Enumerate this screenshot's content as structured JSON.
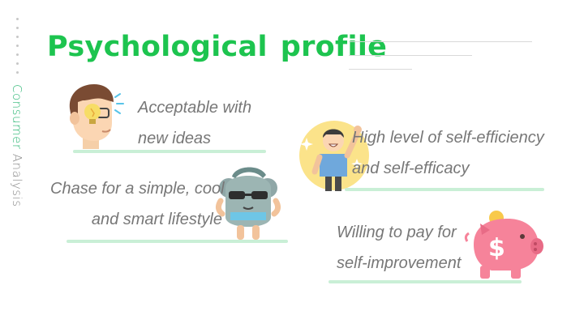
{
  "sidebar": {
    "label_highlight": "Consumer",
    "label_rest": " Analysis"
  },
  "header": {
    "title_word1": "Psychological",
    "title_word2": "profile"
  },
  "colors": {
    "accent_green": "#1dc44f",
    "underline_green": "#c9efd6",
    "text_grey": "#777777"
  },
  "items": [
    {
      "line1": "Acceptable with",
      "line2": "new ideas",
      "icon": "lightbulb-head-icon"
    },
    {
      "line1": "High level of self-efficiency",
      "line2": "and self-efficacy",
      "icon": "cheering-boy-icon"
    },
    {
      "line1": "Chase for a simple, cool",
      "line2": "and smart lifestyle",
      "icon": "cool-koala-icon"
    },
    {
      "line1": "Willing to pay for",
      "line2": "self-improvement",
      "icon": "piggy-bank-icon"
    }
  ]
}
